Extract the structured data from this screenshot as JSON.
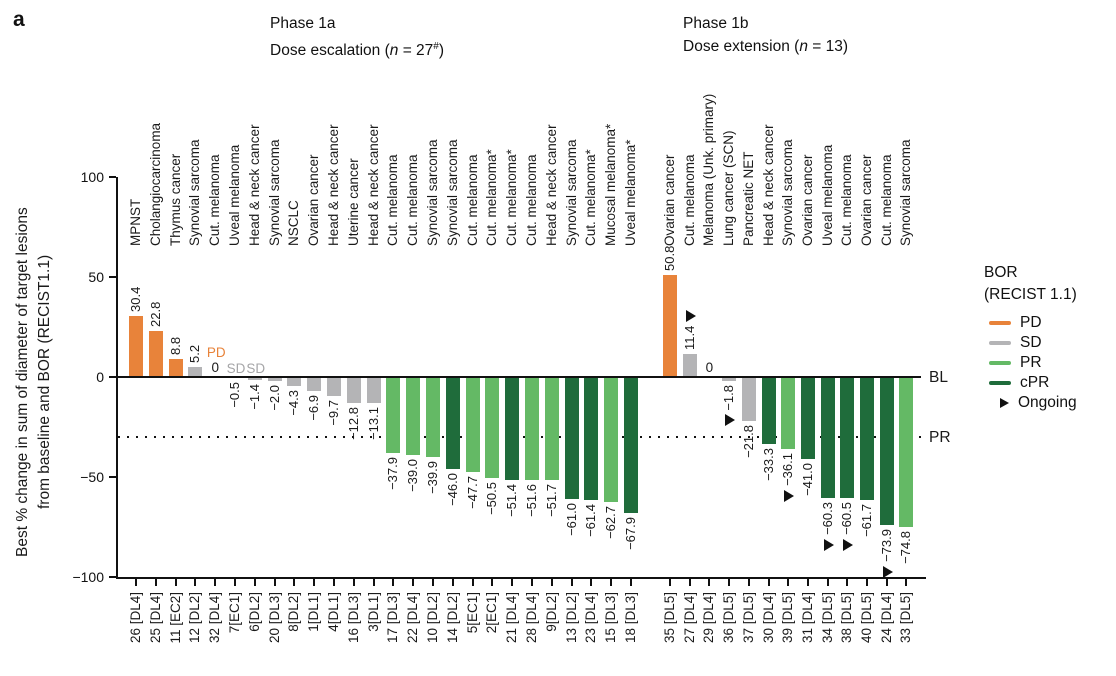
{
  "panel_label": "a",
  "chart_data": {
    "type": "bar",
    "subtype": "waterfall",
    "y_axis": {
      "title_line1": "Best % change in sum of diameter of target lesions",
      "title_line2": "from baseline and BOR (RECIST1.1)",
      "ylim": [
        -100,
        100
      ],
      "grid": false,
      "ticks": [
        {
          "value": 100,
          "label": "100"
        },
        {
          "value": 50,
          "label": "50"
        },
        {
          "value": 0,
          "label": "0"
        },
        {
          "value": -50,
          "label": "−50"
        },
        {
          "value": -100,
          "label": "−100"
        }
      ]
    },
    "reference_lines": {
      "baseline_value": 0,
      "baseline_label": "BL",
      "pr_value": -30,
      "pr_label": "PR",
      "pr_line_style": "dotted"
    },
    "colors": {
      "PD": "#E8833A",
      "SD": "#B4B4B6",
      "PR": "#64B965",
      "cPR": "#1F6C3B"
    },
    "groups": [
      {
        "title": "Phase 1a",
        "subtitle_text": "Dose escalation (n = 27#)",
        "subtitle_parts": [
          {
            "text": "Dose escalation ("
          },
          {
            "text": "n",
            "italic": true
          },
          {
            "text": " = 27"
          },
          {
            "text": "#",
            "sup": true
          },
          {
            "text": ")"
          }
        ],
        "patients": [
          {
            "id": "26 [DL4]",
            "disease": "MPNST",
            "value": 30.4,
            "display": "30.4",
            "bor": "PD"
          },
          {
            "id": "25 [DL4]",
            "disease": "Cholangiocarcinoma",
            "value": 22.8,
            "display": "22.8",
            "bor": "PD"
          },
          {
            "id": "11 [EC2]",
            "disease": "Thymus cancer",
            "value": 8.8,
            "display": "8.8",
            "bor": "PD"
          },
          {
            "id": "12 [DL2]",
            "disease": "Synovial sarcoma",
            "value": 5.2,
            "display": "5.2",
            "bor": "SD"
          },
          {
            "id": "32 [DL4]",
            "disease": "Cut. melanoma",
            "value": 0,
            "display": "0",
            "bor": "PD",
            "bor_text": "PD"
          },
          {
            "id": "7[EC1]",
            "disease": "Uveal melanoma",
            "value": -0.5,
            "display": "−0.5",
            "bor": "SD",
            "bor_text": "SD"
          },
          {
            "id": "6[DL2]",
            "disease": "Head & neck cancer",
            "value": -1.4,
            "display": "−1.4",
            "bor": "SD",
            "bor_text": "SD"
          },
          {
            "id": "20 [DL3]",
            "disease": "Synovial sarcoma",
            "value": -2.0,
            "display": "−2.0",
            "bor": "SD"
          },
          {
            "id": "8[DL2]",
            "disease": "NSCLC",
            "value": -4.3,
            "display": "−4.3",
            "bor": "SD"
          },
          {
            "id": "1[DL1]",
            "disease": "Ovarian cancer",
            "value": -6.9,
            "display": "−6.9",
            "bor": "SD"
          },
          {
            "id": "4[DL1]",
            "disease": "Head & neck cancer",
            "value": -9.7,
            "display": "−9.7",
            "bor": "SD"
          },
          {
            "id": "16 [DL3]",
            "disease": "Uterine cancer",
            "value": -12.8,
            "display": "−12.8",
            "bor": "SD"
          },
          {
            "id": "3[DL1]",
            "disease": "Head & neck cancer",
            "value": -13.1,
            "display": "−13.1",
            "bor": "SD"
          },
          {
            "id": "17 [DL3]",
            "disease": "Cut. melanoma",
            "value": -37.9,
            "display": "−37.9",
            "bor": "PR"
          },
          {
            "id": "22 [DL4]",
            "disease": "Cut. melanoma",
            "value": -39.0,
            "display": "−39.0",
            "bor": "PR"
          },
          {
            "id": "10 [DL2]",
            "disease": "Synovial sarcoma",
            "value": -39.9,
            "display": "−39.9",
            "bor": "PR"
          },
          {
            "id": "14 [DL2]",
            "disease": "Synovial sarcoma",
            "value": -46.0,
            "display": "−46.0",
            "bor": "cPR"
          },
          {
            "id": "5[EC1]",
            "disease": "Cut. melanoma",
            "value": -47.7,
            "display": "−47.7",
            "bor": "PR"
          },
          {
            "id": "2[EC1]",
            "disease": "Cut. melanoma*",
            "value": -50.5,
            "display": "−50.5",
            "bor": "PR"
          },
          {
            "id": "21 [DL4]",
            "disease": "Cut. melanoma*",
            "value": -51.4,
            "display": "−51.4",
            "bor": "cPR"
          },
          {
            "id": "28 [DL4]",
            "disease": "Cut. melanoma",
            "value": -51.6,
            "display": "−51.6",
            "bor": "PR"
          },
          {
            "id": "9[DL2]",
            "disease": "Head & neck cancer",
            "value": -51.7,
            "display": "−51.7",
            "bor": "PR"
          },
          {
            "id": "13 [DL2]",
            "disease": "Synovial sarcoma",
            "value": -61.0,
            "display": "−61.0",
            "bor": "cPR"
          },
          {
            "id": "23 [DL4]",
            "disease": "Cut. melanoma*",
            "value": -61.4,
            "display": "−61.4",
            "bor": "cPR"
          },
          {
            "id": "15 [DL3]",
            "disease": "Mucosal melanoma*",
            "value": -62.7,
            "display": "−62.7",
            "bor": "PR"
          },
          {
            "id": "18 [DL3]",
            "disease": "Uveal melanoma*",
            "value": -67.9,
            "display": "−67.9",
            "bor": "cPR"
          }
        ]
      },
      {
        "title": "Phase 1b",
        "subtitle_text": "Dose extension (n = 13)",
        "subtitle_parts": [
          {
            "text": "Dose extension ("
          },
          {
            "text": "n",
            "italic": true
          },
          {
            "text": " = 13"
          },
          {
            "text": ")"
          }
        ],
        "patients": [
          {
            "id": "35 [DL5]",
            "disease": "Ovarian cancer",
            "value": 50.8,
            "display": "50.8",
            "bor": "PD"
          },
          {
            "id": "27 [DL4]",
            "disease": "Cut. melanoma",
            "value": 11.4,
            "display": "11.4",
            "bor": "SD",
            "ongoing": true
          },
          {
            "id": "29 [DL4]",
            "disease": "Melanoma (Unk. primary)",
            "value": 0,
            "display": "0",
            "bor": null
          },
          {
            "id": "36 [DL5]",
            "disease": "Lung cancer (SCN)",
            "value": -1.8,
            "display": "−1.8",
            "bor": "SD",
            "ongoing": true
          },
          {
            "id": "37 [DL5]",
            "disease": "Pancreatic NET",
            "value": -21.8,
            "display": "−21.8",
            "bor": "SD"
          },
          {
            "id": "30 [DL4]",
            "disease": "Head & neck cancer",
            "value": -33.3,
            "display": "−33.3",
            "bor": "cPR"
          },
          {
            "id": "39 [DL5]",
            "disease": "Synovial sarcoma",
            "value": -36.1,
            "display": "−36.1",
            "bor": "PR",
            "ongoing": true
          },
          {
            "id": "31 [DL4]",
            "disease": "Ovarian cancer",
            "value": -41.0,
            "display": "−41.0",
            "bor": "cPR"
          },
          {
            "id": "34 [DL5]",
            "disease": "Uveal melanoma",
            "value": -60.3,
            "display": "−60.3",
            "bor": "cPR",
            "ongoing": true
          },
          {
            "id": "38 [DL5]",
            "disease": "Cut. melanoma",
            "value": -60.5,
            "display": "−60.5",
            "bor": "cPR",
            "ongoing": true
          },
          {
            "id": "40 [DL5]",
            "disease": "Ovarian cancer",
            "value": -61.7,
            "display": "−61.7",
            "bor": "cPR"
          },
          {
            "id": "24 [DL4]",
            "disease": "Cut. melanoma",
            "value": -73.9,
            "display": "−73.9",
            "bor": "cPR",
            "ongoing": true
          },
          {
            "id": "33 [DL5]",
            "disease": "Synovial sarcoma",
            "value": -74.8,
            "display": "−74.8",
            "bor": "PR"
          }
        ]
      }
    ],
    "legend": {
      "title_line1": "BOR",
      "title_line2": "(RECIST 1.1)",
      "position": "right",
      "items": [
        {
          "label": "PD",
          "type": "line",
          "color": "#E8833A"
        },
        {
          "label": "SD",
          "type": "line",
          "color": "#B4B4B6"
        },
        {
          "label": "PR",
          "type": "line",
          "color": "#64B965"
        },
        {
          "label": "cPR",
          "type": "line",
          "color": "#1F6C3B"
        },
        {
          "label": "Ongoing",
          "type": "triangle",
          "color": "#111111"
        }
      ]
    }
  }
}
